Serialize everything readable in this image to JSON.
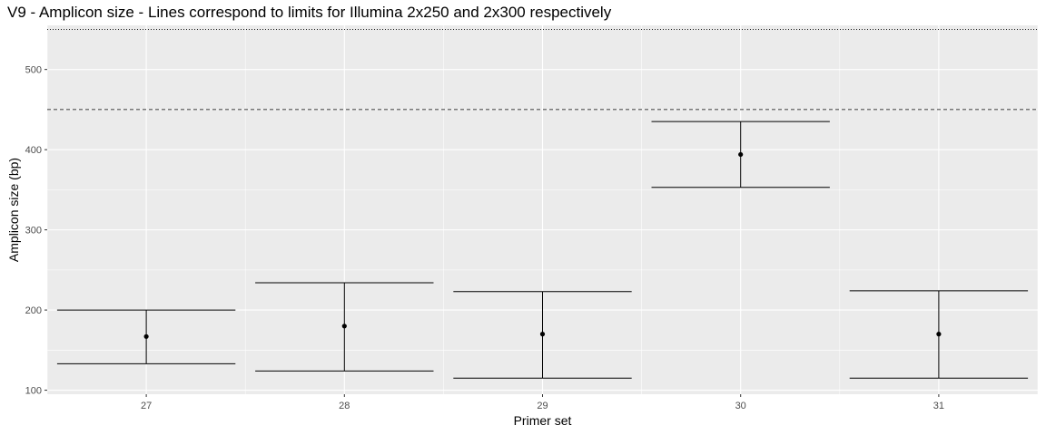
{
  "title": "V9 - Amplicon size - Lines correspond to limits for Illumina 2x250 and 2x300 respectively",
  "chart_data": {
    "type": "errorbar",
    "title": "V9 - Amplicon size - Lines correspond to limits for Illumina 2x250 and 2x300 respectively",
    "xlabel": "Primer set",
    "ylabel": "Amplicon size (bp)",
    "categories": [
      "27",
      "28",
      "29",
      "30",
      "31"
    ],
    "mean": [
      167,
      180,
      170,
      394,
      170
    ],
    "ymin": [
      133,
      124,
      115,
      353,
      115
    ],
    "ymax": [
      200,
      234,
      223,
      435,
      224
    ],
    "reference_lines": [
      {
        "y": 450,
        "style": "dashed",
        "limit": "Illumina 2x250"
      },
      {
        "y": 550,
        "style": "dotted",
        "limit": "Illumina 2x300"
      }
    ],
    "ylim": [
      95,
      555
    ],
    "yticks": [
      100,
      200,
      300,
      400,
      500
    ],
    "grid": true,
    "legend": "none"
  },
  "colors": {
    "panel": "#ebebeb",
    "grid": "#ffffff",
    "marks": "#000000",
    "tick_text": "#4d4d4d"
  }
}
